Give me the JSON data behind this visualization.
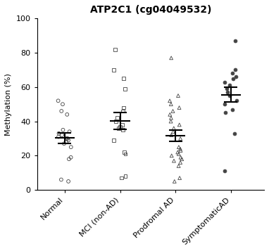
{
  "title": "ATP2C1 (cg04049532)",
  "ylabel": "Methylation (%)",
  "ylim": [
    0,
    100
  ],
  "yticks": [
    0,
    20,
    40,
    60,
    80,
    100
  ],
  "categories": [
    "Normal",
    "MCI (non-AD)",
    "Prodromal AD",
    "SymptomaticAD"
  ],
  "groups": {
    "Normal": {
      "values": [
        5,
        6,
        18,
        19,
        25,
        27,
        28,
        29,
        30,
        30,
        31,
        32,
        33,
        34,
        35,
        44,
        46,
        50,
        52
      ],
      "marker": "o",
      "facecolor": "none",
      "edgecolor": "#444444"
    },
    "MCI (non-AD)": {
      "values": [
        7,
        8,
        21,
        22,
        29,
        35,
        36,
        37,
        38,
        40,
        42,
        46,
        48,
        59,
        65,
        70,
        82
      ],
      "marker": "s",
      "facecolor": "none",
      "edgecolor": "#444444"
    },
    "Prodromal AD": {
      "values": [
        5,
        7,
        14,
        16,
        17,
        18,
        19,
        20,
        21,
        22,
        23,
        24,
        25,
        30,
        32,
        34,
        36,
        38,
        40,
        42,
        44,
        46,
        48,
        50,
        52,
        55,
        77
      ],
      "marker": "^",
      "facecolor": "none",
      "edgecolor": "#444444"
    },
    "SymptomaticAD": {
      "values": [
        11,
        33,
        45,
        47,
        50,
        52,
        55,
        57,
        59,
        61,
        63,
        65,
        66,
        68,
        70,
        87
      ],
      "marker": "o",
      "facecolor": "#444444",
      "edgecolor": "#444444"
    }
  },
  "background_color": "#ffffff",
  "title_fontsize": 10,
  "label_fontsize": 8,
  "tick_fontsize": 8
}
